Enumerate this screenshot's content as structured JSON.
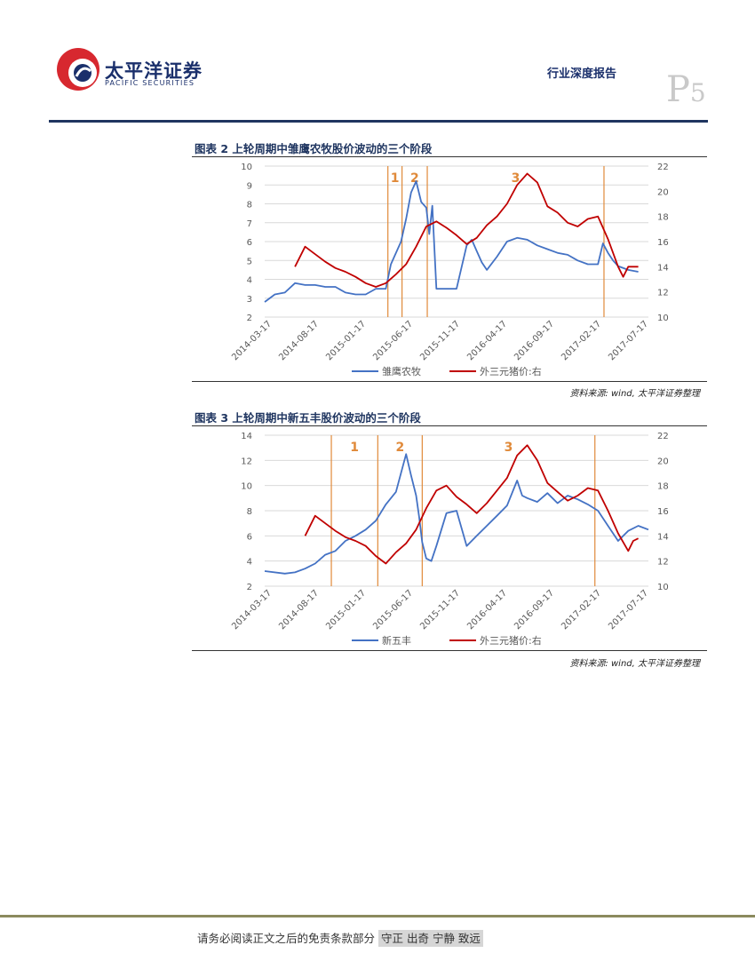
{
  "header": {
    "logo_cn": "太平洋证券",
    "logo_en": "PACIFIC SECURITIES",
    "report_type": "行业深度报告",
    "page_letter": "P",
    "page_number": "5"
  },
  "figures": [
    {
      "title": "图表 2 上轮周期中雏鹰农牧股价波动的三个阶段",
      "source": "资料来源: wind, 太平洋证券整理"
    },
    {
      "title": "图表 3 上轮周期中新五丰股价波动的三个阶段",
      "source": "资料来源: wind, 太平洋证券整理"
    }
  ],
  "footer": {
    "disclaimer": "请务必阅读正文之后的免责条款部分",
    "motto": "守正 出奇 宁静 致远"
  },
  "colors": {
    "stock_series": "#4472c4",
    "pork_series": "#c00000",
    "phase_line": "#e08a3a",
    "brand_blue": "#1a2f6b",
    "brand_red": "#d7282f"
  },
  "chart_data": [
    {
      "type": "line",
      "x_tick_labels": [
        "2014-03-17",
        "2014-08-17",
        "2015-01-17",
        "2015-06-17",
        "2015-11-17",
        "2016-04-17",
        "2016-09-17",
        "2017-02-17",
        "2017-07-17"
      ],
      "y_left": {
        "ylim": [
          2,
          10
        ],
        "ticks": [
          "2",
          "3",
          "4",
          "5",
          "6",
          "7",
          "8",
          "9",
          "10"
        ]
      },
      "y_right": {
        "ylim": [
          10,
          22
        ],
        "ticks": [
          "10",
          "12",
          "14",
          "16",
          "18",
          "20",
          "22"
        ]
      },
      "phase_labels": [
        "1",
        "2",
        "3"
      ],
      "phase_lines": [
        12.2,
        13.6,
        16.1,
        33.6
      ],
      "series": [
        {
          "name": "雏鹰农牧",
          "axis": "left",
          "x": [
            0,
            1,
            2,
            3,
            4,
            5,
            6,
            7,
            8,
            9,
            10,
            11,
            12,
            12.5,
            13,
            13.5,
            14,
            14.5,
            15,
            15.5,
            16,
            16.3,
            16.6,
            17,
            18,
            19,
            20,
            20.5,
            21,
            21.5,
            22,
            23,
            24,
            25,
            26,
            27,
            28,
            29,
            30,
            31,
            32,
            33,
            33.5,
            34,
            34.5,
            35,
            36,
            37
          ],
          "y": [
            2.8,
            3.2,
            3.3,
            3.8,
            3.7,
            3.7,
            3.6,
            3.6,
            3.3,
            3.2,
            3.2,
            3.5,
            3.5,
            4.8,
            5.4,
            6.0,
            7.2,
            8.6,
            9.2,
            8.1,
            7.8,
            6.4,
            7.9,
            3.5,
            3.5,
            3.5,
            5.8,
            6.1,
            5.5,
            4.9,
            4.5,
            5.2,
            6.0,
            6.2,
            6.1,
            5.8,
            5.6,
            5.4,
            5.3,
            5.0,
            4.8,
            4.8,
            5.9,
            5.4,
            5.0,
            4.7,
            4.5,
            4.4
          ]
        },
        {
          "name": "外三元猪价:右",
          "axis": "right",
          "x": [
            3,
            4,
            5,
            6,
            7,
            8,
            9,
            10,
            11,
            12,
            13,
            14,
            15,
            16,
            17,
            18,
            19,
            20,
            21,
            22,
            23,
            24,
            25,
            26,
            27,
            28,
            29,
            30,
            31,
            32,
            33,
            34,
            35,
            35.5,
            36,
            37
          ],
          "y": [
            14.0,
            15.6,
            15.0,
            14.4,
            13.9,
            13.6,
            13.2,
            12.7,
            12.4,
            12.7,
            13.4,
            14.2,
            15.6,
            17.2,
            17.6,
            17.1,
            16.5,
            15.8,
            16.3,
            17.3,
            18.0,
            19.0,
            20.5,
            21.4,
            20.7,
            18.8,
            18.3,
            17.5,
            17.2,
            17.8,
            18.0,
            16.2,
            14.0,
            13.2,
            14.0,
            14.0
          ]
        }
      ]
    },
    {
      "type": "line",
      "x_tick_labels": [
        "2014-03-17",
        "2014-08-17",
        "2015-01-17",
        "2015-06-17",
        "2015-11-17",
        "2016-04-17",
        "2016-09-17",
        "2017-02-17",
        "2017-07-17"
      ],
      "y_left": {
        "ylim": [
          2,
          14
        ],
        "ticks": [
          "2",
          "4",
          "6",
          "8",
          "10",
          "12",
          "14"
        ]
      },
      "y_right": {
        "ylim": [
          10,
          22
        ],
        "ticks": [
          "10",
          "12",
          "14",
          "16",
          "18",
          "20",
          "22"
        ]
      },
      "phase_labels": [
        "1",
        "2",
        "3"
      ],
      "phase_lines": [
        6.6,
        11.2,
        15.6,
        32.7
      ],
      "series": [
        {
          "name": "新五丰",
          "axis": "left",
          "x": [
            0,
            2,
            3,
            4,
            5,
            6,
            7,
            8,
            9,
            10,
            11,
            12,
            13,
            13.5,
            14,
            14.5,
            15,
            15.3,
            15.6,
            16,
            16.5,
            17,
            18,
            19,
            20,
            21,
            22,
            23,
            24,
            25,
            25.5,
            26,
            27,
            28,
            29,
            30,
            31,
            32,
            33,
            34,
            35,
            36,
            37,
            38
          ],
          "y": [
            3.2,
            3.0,
            3.1,
            3.4,
            3.8,
            4.5,
            4.8,
            5.6,
            6.0,
            6.5,
            7.2,
            8.5,
            9.5,
            11.0,
            12.5,
            10.8,
            9.2,
            7.5,
            5.5,
            4.2,
            4.0,
            5.2,
            7.8,
            8.0,
            5.2,
            6.0,
            6.8,
            7.6,
            8.4,
            10.4,
            9.2,
            9.0,
            8.7,
            9.4,
            8.6,
            9.2,
            8.9,
            8.5,
            8.0,
            6.8,
            5.6,
            6.4,
            6.8,
            6.5
          ]
        },
        {
          "name": "外三元猪价:右",
          "axis": "right",
          "x": [
            4,
            5,
            6,
            7,
            8,
            9,
            10,
            11,
            12,
            13,
            14,
            15,
            16,
            17,
            18,
            19,
            20,
            21,
            22,
            23,
            24,
            25,
            26,
            27,
            28,
            29,
            30,
            31,
            32,
            33,
            34,
            35,
            36,
            36.5,
            37
          ],
          "y": [
            14.0,
            15.6,
            15.0,
            14.4,
            13.9,
            13.6,
            13.2,
            12.4,
            11.8,
            12.7,
            13.4,
            14.5,
            16.2,
            17.6,
            18.0,
            17.1,
            16.5,
            15.8,
            16.6,
            17.6,
            18.6,
            20.4,
            21.2,
            20.0,
            18.2,
            17.5,
            16.8,
            17.2,
            17.8,
            17.6,
            16.0,
            14.2,
            12.8,
            13.6,
            13.8
          ]
        }
      ]
    }
  ]
}
